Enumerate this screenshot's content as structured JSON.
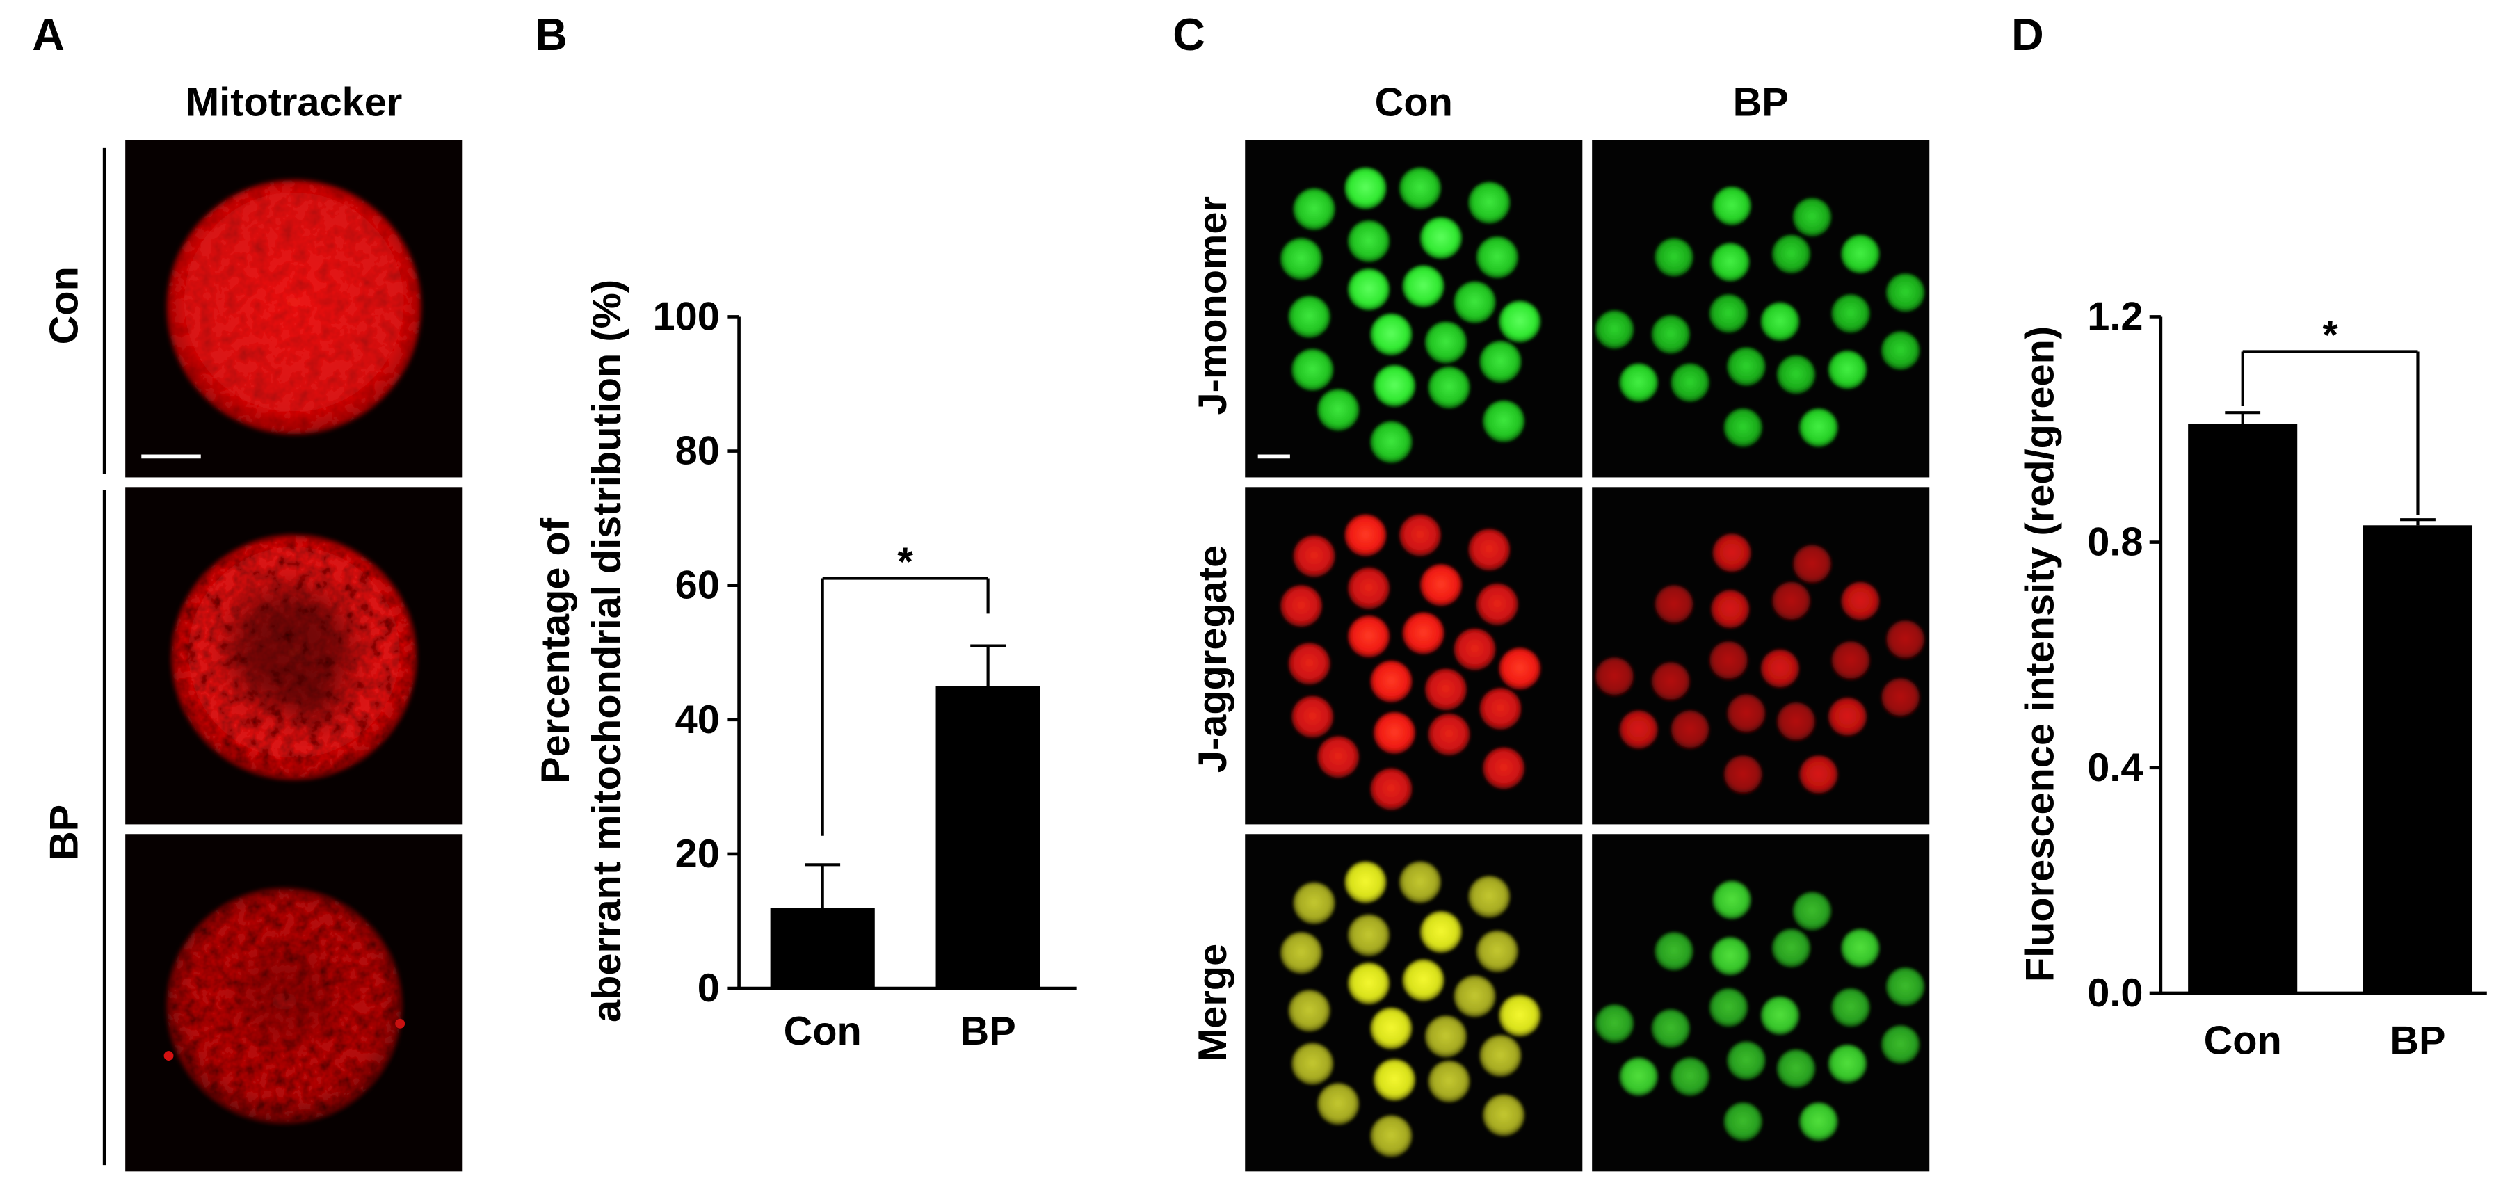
{
  "panels": {
    "a": {
      "label": "A",
      "title": "Mitotracker",
      "rows": [
        "Con",
        "BP"
      ]
    },
    "b": {
      "label": "B"
    },
    "c": {
      "label": "C",
      "columns": [
        "Con",
        "BP"
      ],
      "rows": [
        "J-monomer",
        "J-aggregate",
        "Merge"
      ]
    },
    "d": {
      "label": "D"
    }
  },
  "colors": {
    "bar": "#000000",
    "axis": "#000000",
    "mitotracker": "#d81212",
    "j_monomer": "#2ad42a",
    "j_aggregate": "#e01414",
    "merge_con": "#d6dc1c",
    "merge_bp": "#34c02a",
    "scale_bar": "#ffffff",
    "micrograph_background": "#000000"
  },
  "chart_data": [
    {
      "panel": "B",
      "type": "bar",
      "categories": [
        "Con",
        "BP"
      ],
      "values": [
        12.0,
        45.0
      ],
      "error_upper": [
        6.4,
        6.0
      ],
      "title": "",
      "xlabel": "",
      "ylabel": [
        "Percentage of",
        "aberrant mitochondrial distribution (%)"
      ],
      "ylim": [
        0,
        100
      ],
      "yticks": [
        0,
        20,
        40,
        60,
        80,
        100
      ],
      "ytick_labels": [
        "0",
        "20",
        "40",
        "60",
        "80",
        "100"
      ],
      "significance": {
        "between": [
          "Con",
          "BP"
        ],
        "label": "*"
      },
      "bar_color": "#000000",
      "grid": false
    },
    {
      "panel": "D",
      "type": "bar",
      "categories": [
        "Con",
        "BP"
      ],
      "values": [
        1.01,
        0.83
      ],
      "error_upper": [
        0.02,
        0.01
      ],
      "title": "",
      "xlabel": "",
      "ylabel": "Fluorescence intensity (red/green)",
      "ylim": [
        0,
        1.2
      ],
      "yticks": [
        0,
        0.4,
        0.8,
        1.2
      ],
      "ytick_labels": [
        "0.0",
        "0.4",
        "0.8",
        "1.2"
      ],
      "significance": {
        "between": [
          "Con",
          "BP"
        ],
        "label": "*"
      },
      "bar_color": "#000000",
      "grid": false
    }
  ]
}
